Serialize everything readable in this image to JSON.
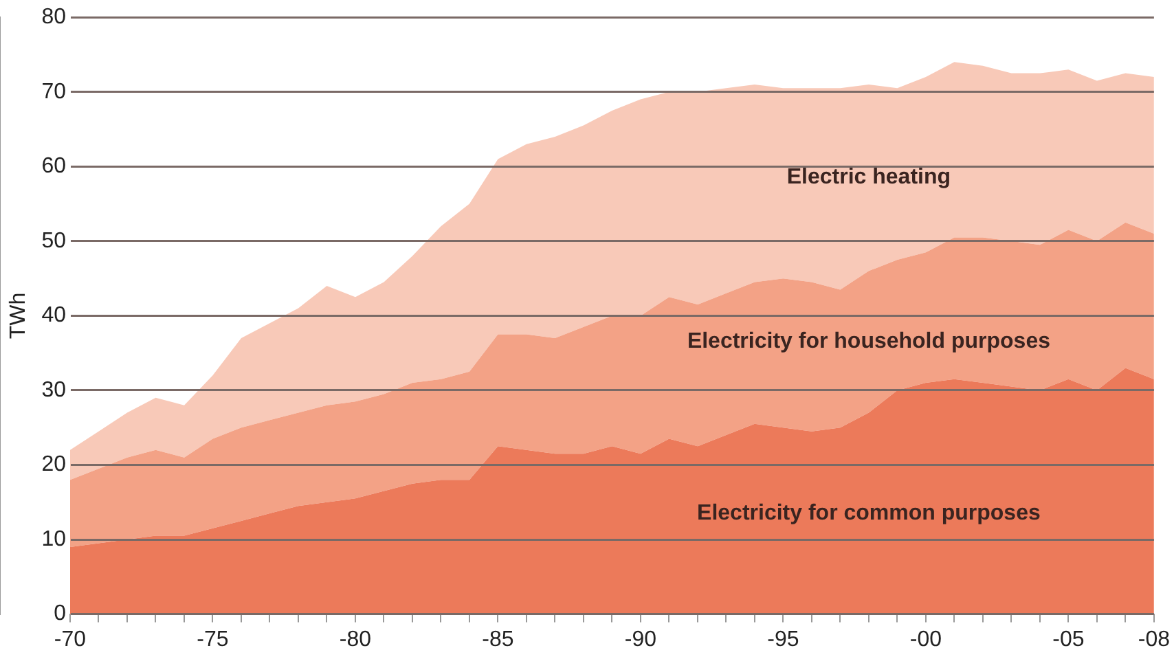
{
  "chart_data": {
    "type": "area",
    "stacked": true,
    "ylabel": "TWh",
    "categories": [
      "-70",
      null,
      null,
      null,
      null,
      "-75",
      null,
      null,
      null,
      null,
      "-80",
      null,
      null,
      null,
      null,
      "-85",
      null,
      null,
      null,
      null,
      "-90",
      null,
      null,
      null,
      null,
      "-95",
      null,
      null,
      null,
      null,
      "-00",
      null,
      null,
      null,
      null,
      "-05",
      null,
      null,
      "-08"
    ],
    "series": [
      {
        "name": "Electricity for common purposes",
        "color": "#ec7a5a",
        "values": [
          9,
          9.5,
          10,
          10.5,
          10.5,
          11.5,
          12.5,
          13.5,
          14.5,
          15,
          15.5,
          16.5,
          17.5,
          18,
          18,
          22.5,
          22,
          21.5,
          21.5,
          22.5,
          21.5,
          23.5,
          22.5,
          24,
          25.5,
          25,
          24.5,
          25,
          27,
          30,
          31,
          31.5,
          31,
          30.5,
          30,
          31.5,
          30,
          33,
          31.5
        ]
      },
      {
        "name": "Electricity for household purposes",
        "color": "#f3a286",
        "values": [
          9,
          10,
          11,
          11.5,
          10.5,
          12,
          12.5,
          12.5,
          12.5,
          13,
          13,
          13,
          13.5,
          13.5,
          14.5,
          15,
          15.5,
          15.5,
          17,
          17.5,
          18.5,
          19,
          19,
          19,
          19,
          20,
          20,
          18.5,
          19,
          17.5,
          17.5,
          19,
          19.5,
          19.5,
          19.5,
          20,
          20,
          19.5,
          19.5
        ]
      },
      {
        "name": "Electric heating",
        "color": "#f8c9b8",
        "values": [
          4,
          5,
          6,
          7,
          7,
          8.5,
          12,
          13,
          14,
          16,
          14,
          15,
          17,
          20.5,
          22.5,
          23.5,
          25.5,
          27,
          27,
          27.5,
          29,
          27.5,
          28.5,
          27.5,
          26.5,
          25.5,
          26,
          27,
          25,
          23,
          23.5,
          23.5,
          23,
          22.5,
          23,
          21.5,
          21.5,
          20,
          21
        ]
      }
    ],
    "ylim": [
      0,
      80
    ],
    "yticks": [
      0,
      10,
      20,
      30,
      40,
      50,
      60,
      70,
      80
    ],
    "grid": "y",
    "legend": false
  }
}
